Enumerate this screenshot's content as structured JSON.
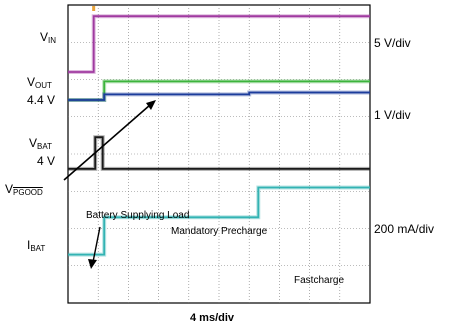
{
  "channels": {
    "vin": {
      "label_main": "V",
      "label_sub": "IN",
      "scale": "5 V/div"
    },
    "vout": {
      "label_main": "V",
      "label_sub": "OUT",
      "level": "4.4 V",
      "scale": "1 V/div"
    },
    "vbat": {
      "label_main": "V",
      "label_sub": "BAT",
      "level": "4 V"
    },
    "pgood": {
      "label_main": "V",
      "label_sub": "PGOOD"
    },
    "ibat": {
      "label_main": "I",
      "label_sub": "BAT",
      "scale": "200 mA/div"
    }
  },
  "annotations": {
    "battery_supplying_load": "Battery Supplying Load",
    "mandatory_precharge": "Mandatory Precharge",
    "fastcharge": "Fastcharge"
  },
  "timebase": "4 ms/div",
  "colors": {
    "vin": "#a03aa0",
    "vout": "#3cb43c",
    "vbat": "#1c3c9c",
    "pgood": "#1a1a1a",
    "ibat": "#33b3b3",
    "grid": "#7a7a7a",
    "trigger": "#e8a33a"
  },
  "chart_data": {
    "type": "line",
    "title": "",
    "xlabel": "4 ms/div",
    "grid": true,
    "x_divisions": 10,
    "y_divisions": 8,
    "series_note": "values in screen divisions from bottom of graticule; x in divisions from left",
    "series": [
      {
        "id": "vin",
        "points": [
          [
            0,
            6.2
          ],
          [
            0.85,
            6.2
          ],
          [
            0.85,
            7.7
          ],
          [
            10,
            7.7
          ]
        ]
      },
      {
        "id": "vout",
        "points": [
          [
            0,
            5.45
          ],
          [
            1.2,
            5.45
          ],
          [
            1.2,
            5.95
          ],
          [
            10,
            5.95
          ]
        ]
      },
      {
        "id": "vbat",
        "points": [
          [
            0,
            5.45
          ],
          [
            1.2,
            5.45
          ],
          [
            1.2,
            5.6
          ],
          [
            6.0,
            5.6
          ],
          [
            6.0,
            5.65
          ],
          [
            10,
            5.65
          ]
        ]
      },
      {
        "id": "pgood",
        "points": [
          [
            0,
            3.6
          ],
          [
            0.9,
            3.6
          ],
          [
            0.9,
            4.45
          ],
          [
            1.15,
            4.45
          ],
          [
            1.15,
            3.6
          ],
          [
            10,
            3.6
          ]
        ]
      },
      {
        "id": "ibat",
        "points": [
          [
            0,
            1.3
          ],
          [
            1.2,
            1.3
          ],
          [
            1.2,
            2.3
          ],
          [
            6.3,
            2.3
          ],
          [
            6.3,
            3.1
          ],
          [
            10,
            3.1
          ]
        ]
      }
    ]
  }
}
